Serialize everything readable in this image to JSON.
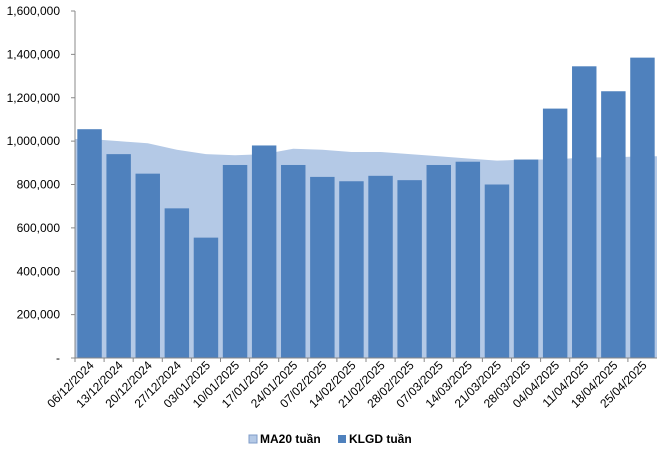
{
  "chart_data": {
    "type": "bar",
    "title": "",
    "xlabel": "",
    "ylabel": "",
    "ylim": [
      0,
      1600000
    ],
    "y_ticks": [
      {
        "value": 0,
        "label": "-"
      },
      {
        "value": 200000,
        "label": "200,000"
      },
      {
        "value": 400000,
        "label": "400,000"
      },
      {
        "value": 600000,
        "label": "600,000"
      },
      {
        "value": 800000,
        "label": "800,000"
      },
      {
        "value": 1000000,
        "label": "1,000,000"
      },
      {
        "value": 1200000,
        "label": "1,200,000"
      },
      {
        "value": 1400000,
        "label": "1,400,000"
      },
      {
        "value": 1600000,
        "label": "1,600,000"
      }
    ],
    "categories": [
      "06/12/2024",
      "13/12/2024",
      "20/12/2024",
      "27/12/2024",
      "03/01/2025",
      "10/01/2025",
      "17/01/2025",
      "24/01/2025",
      "07/02/2025",
      "14/02/2025",
      "21/02/2025",
      "28/02/2025",
      "07/03/2025",
      "14/03/2025",
      "21/03/2025",
      "28/03/2025",
      "04/04/2025",
      "11/04/2025",
      "18/04/2025",
      "25/04/2025"
    ],
    "series": [
      {
        "name": "MA20 tuần",
        "kind": "area",
        "color": "#B4C9E6",
        "values": [
          1010000,
          1000000,
          990000,
          960000,
          940000,
          935000,
          940000,
          965000,
          960000,
          950000,
          950000,
          940000,
          930000,
          920000,
          910000,
          915000,
          915000,
          925000,
          925000,
          930000
        ]
      },
      {
        "name": "KLGD tuần",
        "kind": "bar",
        "color": "#4F81BD",
        "values": [
          1055000,
          940000,
          850000,
          690000,
          555000,
          890000,
          980000,
          890000,
          835000,
          815000,
          840000,
          820000,
          890000,
          905000,
          800000,
          915000,
          1150000,
          1345000,
          1230000,
          1385000
        ]
      }
    ],
    "grid": false,
    "legend_position": "bottom"
  }
}
